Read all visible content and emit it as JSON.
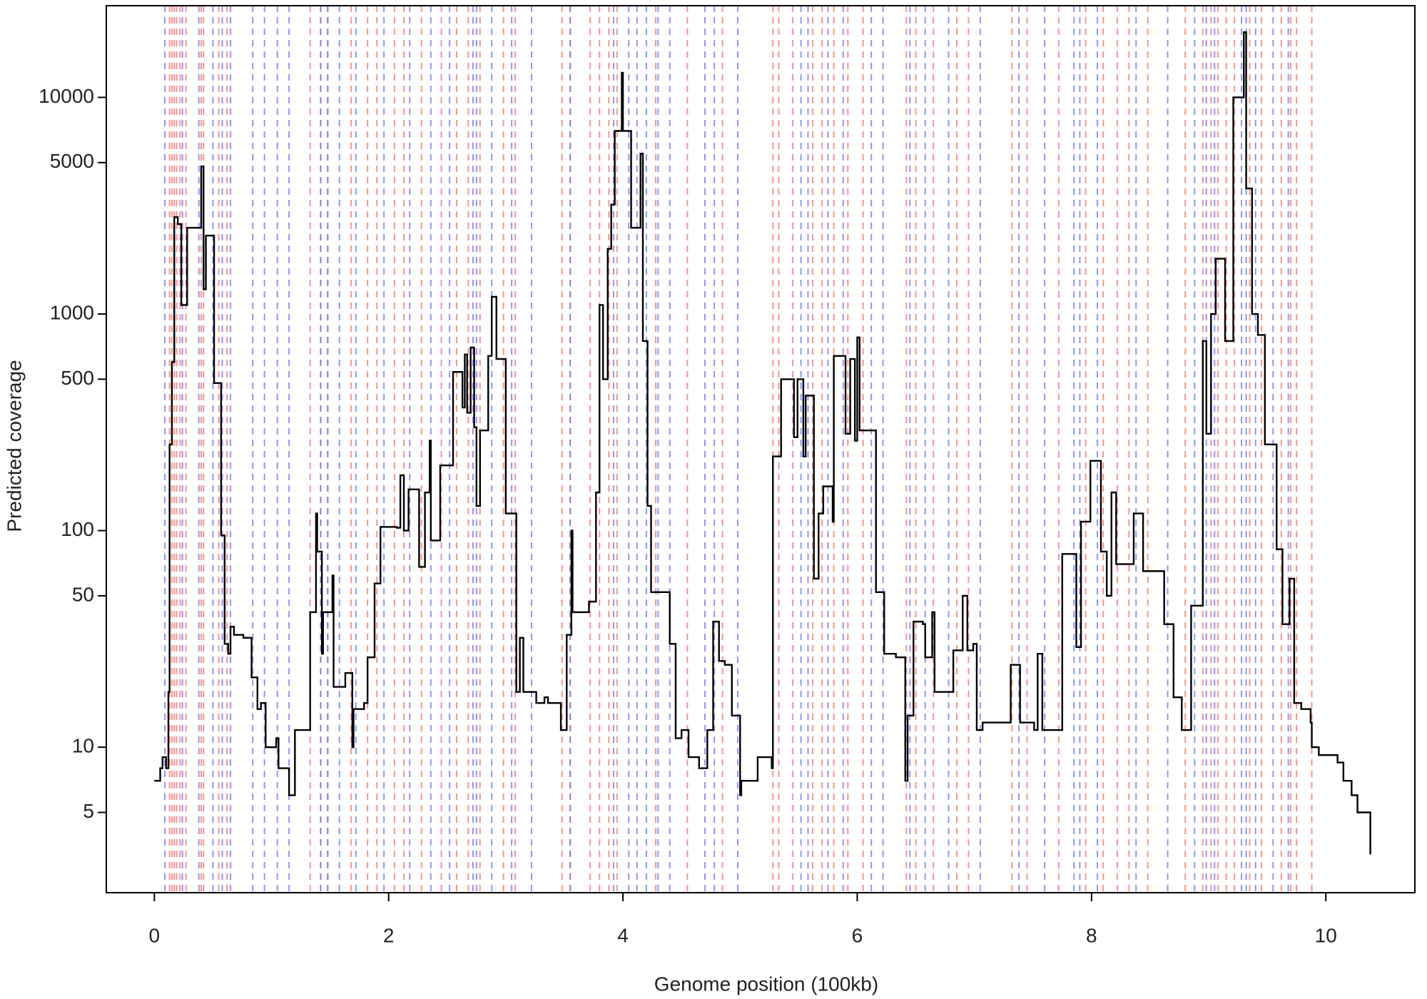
{
  "chart_data": {
    "type": "step",
    "xlabel": "Genome position (100kb)",
    "ylabel": "Predicted coverage",
    "log_y": true,
    "grid": false,
    "step": "post",
    "xlim": [
      -0.41,
      10.76
    ],
    "ylim": [
      2.13,
      26500
    ],
    "xticks": [
      0,
      2,
      4,
      6,
      8,
      10
    ],
    "yticks": [
      5,
      10,
      50,
      100,
      500,
      1000,
      5000,
      10000
    ],
    "series": [
      {
        "color": "#000000",
        "x": [
          0,
          0.05,
          0.07,
          0.1,
          0.12,
          0.13,
          0.15,
          0.17,
          0.2,
          0.23,
          0.28,
          0.4,
          0.42,
          0.44,
          0.51,
          0.57,
          0.6,
          0.63,
          0.65,
          0.68,
          0.76,
          0.83,
          0.88,
          0.91,
          0.95,
          1.04,
          1.06,
          1.15,
          1.2,
          1.33,
          1.38,
          1.39,
          1.43,
          1.44,
          1.52,
          1.53,
          1.63,
          1.69,
          1.7,
          1.79,
          1.82,
          1.88,
          1.93,
          2.07,
          2.1,
          2.13,
          2.17,
          2.26,
          2.31,
          2.35,
          2.36,
          2.44,
          2.55,
          2.63,
          2.65,
          2.67,
          2.7,
          2.73,
          2.75,
          2.78,
          2.85,
          2.88,
          2.92,
          3.0,
          3.09,
          3.12,
          3.15,
          3.26,
          3.33,
          3.36,
          3.47,
          3.52,
          3.56,
          3.57,
          3.71,
          3.77,
          3.8,
          3.83,
          3.87,
          3.9,
          3.93,
          3.99,
          4.0,
          4.07,
          4.15,
          4.17,
          4.21,
          4.24,
          4.4,
          4.45,
          4.5,
          4.56,
          4.65,
          4.72,
          4.77,
          4.82,
          4.87,
          4.93,
          5.0,
          5.01,
          5.15,
          5.27,
          5.28,
          5.35,
          5.46,
          5.49,
          5.54,
          5.56,
          5.63,
          5.67,
          5.71,
          5.79,
          5.8,
          5.9,
          5.94,
          5.98,
          6.0,
          6.02,
          6.16,
          6.23,
          6.33,
          6.41,
          6.43,
          6.48,
          6.56,
          6.58,
          6.64,
          6.66,
          6.82,
          6.9,
          6.94,
          6.99,
          7.02,
          7.07,
          7.31,
          7.39,
          7.51,
          7.54,
          7.58,
          7.75,
          7.87,
          7.91,
          7.99,
          8.08,
          8.13,
          8.17,
          8.21,
          8.36,
          8.44,
          8.46,
          8.62,
          8.7,
          8.77,
          8.85,
          8.95,
          8.98,
          9.02,
          9.06,
          9.14,
          9.21,
          9.3,
          9.32,
          9.37,
          9.42,
          9.48,
          9.58,
          9.63,
          9.69,
          9.73,
          9.79,
          9.87,
          9.88,
          9.94,
          10.1,
          10.15,
          10.22,
          10.27,
          10.38
        ],
        "values": [
          7,
          8,
          9,
          8,
          18,
          250,
          600,
          2800,
          2600,
          1100,
          2500,
          4800,
          1300,
          2300,
          480,
          95,
          30,
          27,
          36,
          33,
          32,
          21,
          15,
          16,
          10,
          11,
          8,
          6,
          12,
          42,
          120,
          80,
          27,
          42,
          62,
          19,
          22,
          10,
          15,
          16,
          26,
          57,
          104,
          103,
          180,
          100,
          155,
          68,
          150,
          260,
          90,
          200,
          540,
          370,
          650,
          350,
          700,
          300,
          130,
          290,
          640,
          1200,
          620,
          120,
          18,
          32,
          18,
          16,
          17,
          16,
          12,
          33,
          100,
          42,
          47,
          150,
          1100,
          500,
          2000,
          3200,
          7000,
          13000,
          7000,
          2500,
          5500,
          750,
          130,
          52,
          30,
          11,
          12,
          9,
          8,
          12,
          38,
          25,
          24,
          14,
          6,
          7,
          9,
          8,
          220,
          500,
          270,
          500,
          220,
          420,
          60,
          120,
          160,
          110,
          640,
          280,
          620,
          260,
          780,
          290,
          52,
          27,
          26,
          7,
          14,
          38,
          37,
          26,
          42,
          18,
          28,
          50,
          28,
          30,
          12,
          13,
          24,
          13,
          12,
          27,
          12,
          78,
          29,
          110,
          210,
          80,
          50,
          150,
          70,
          120,
          65,
          65,
          37,
          17,
          12,
          45,
          750,
          280,
          1000,
          1800,
          750,
          10000,
          20000,
          3800,
          1000,
          800,
          250,
          82,
          37,
          60,
          16,
          15,
          13,
          10,
          9.2,
          8.5,
          7,
          6,
          5,
          3.2
        ]
      }
    ],
    "vlines": [
      {
        "color": "#f07070",
        "x": [
          0.13,
          0.15,
          0.17,
          0.19,
          0.22,
          0.27,
          0.4,
          0.42,
          0.55,
          0.62,
          1.33,
          1.42,
          1.48,
          1.68,
          1.82,
          1.9,
          2.05,
          2.13,
          2.28,
          2.45,
          2.58,
          2.68,
          2.78,
          2.98,
          3.08,
          3.48,
          3.55,
          3.72,
          3.8,
          3.88,
          3.95,
          4.28,
          4.55,
          4.85,
          5.28,
          5.33,
          5.45,
          5.62,
          5.7,
          5.8,
          5.92,
          6.05,
          6.42,
          6.5,
          6.65,
          6.85,
          6.95,
          7.32,
          7.45,
          7.72,
          7.95,
          8.1,
          8.22,
          8.32,
          8.48,
          8.8,
          8.95,
          9.02,
          9.08,
          9.15,
          9.22,
          9.35,
          9.45,
          9.62,
          9.7,
          9.75,
          9.88
        ]
      },
      {
        "color": "#7070f0",
        "x": [
          0.09,
          0.24,
          0.38,
          0.5,
          0.58,
          0.65,
          0.84,
          0.94,
          1.05,
          1.15,
          1.42,
          1.48,
          1.58,
          1.72,
          1.96,
          2.18,
          2.36,
          2.52,
          2.72,
          2.75,
          2.88,
          3.05,
          3.22,
          3.55,
          3.92,
          4.05,
          4.12,
          4.2,
          4.3,
          4.4,
          4.7,
          4.78,
          4.98,
          5.52,
          5.58,
          5.75,
          5.88,
          6.12,
          6.22,
          6.45,
          6.58,
          6.78,
          7.05,
          7.38,
          7.6,
          7.85,
          7.9,
          8.05,
          8.38,
          8.65,
          8.88,
          8.98,
          9.05,
          9.28,
          9.32,
          9.4,
          9.55,
          9.68
        ]
      }
    ]
  }
}
